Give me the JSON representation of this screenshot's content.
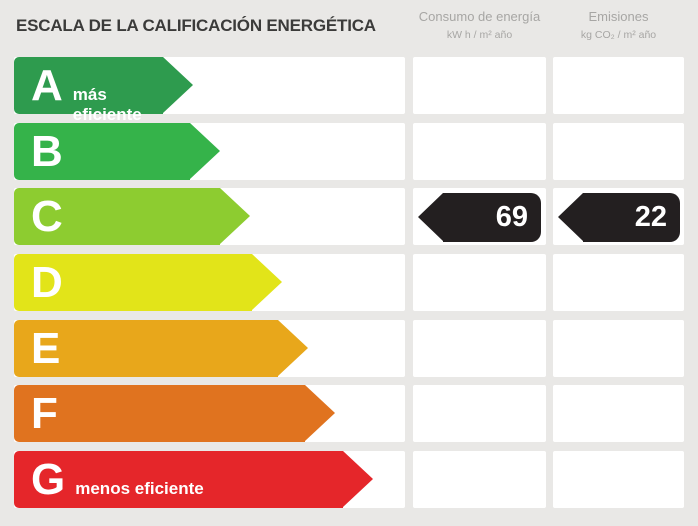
{
  "title": "ESCALA DE LA CALIFICACIÓN ENERGÉTICA",
  "columns": [
    {
      "name": "Consumo de energía",
      "unit": "kW h / m² año"
    },
    {
      "name": "Emisiones",
      "unit": "kg CO₂ / m² año"
    }
  ],
  "scale": {
    "rows": [
      {
        "letter": "A",
        "note": "más eficiente",
        "color": "#2e9b4e",
        "arrow_width": 179
      },
      {
        "letter": "B",
        "note": "",
        "color": "#35b34a",
        "arrow_width": 206
      },
      {
        "letter": "C",
        "note": "",
        "color": "#8dcc30",
        "arrow_width": 236
      },
      {
        "letter": "D",
        "note": "",
        "color": "#e2e419",
        "arrow_width": 268
      },
      {
        "letter": "E",
        "note": "",
        "color": "#e8a71b",
        "arrow_width": 294
      },
      {
        "letter": "F",
        "note": "",
        "color": "#e0731f",
        "arrow_width": 321
      },
      {
        "letter": "G",
        "note": "menos eficiente",
        "color": "#e5262a",
        "arrow_width": 359
      }
    ]
  },
  "rating": {
    "letter": "C",
    "consumption_value": "69",
    "emissions_value": "22",
    "marker_color": "#231f20"
  },
  "colors": {
    "background": "#e9e8e6",
    "panel": "#ffffff",
    "title_text": "#3b3b3a",
    "header_text": "#a7a6a4"
  },
  "chart_data": {
    "type": "table",
    "title": "ESCALA DE LA CALIFICACIÓN ENERGÉTICA",
    "scale_categories": [
      "A",
      "B",
      "C",
      "D",
      "E",
      "F",
      "G"
    ],
    "rating": "C",
    "series": [
      {
        "name": "Consumo de energía (kW h / m² año)",
        "value": 69
      },
      {
        "name": "Emisiones (kg CO₂ / m² año)",
        "value": 22
      }
    ],
    "annotations": [
      "más eficiente",
      "menos eficiente"
    ],
    "legend_position": "none",
    "grid": false
  }
}
